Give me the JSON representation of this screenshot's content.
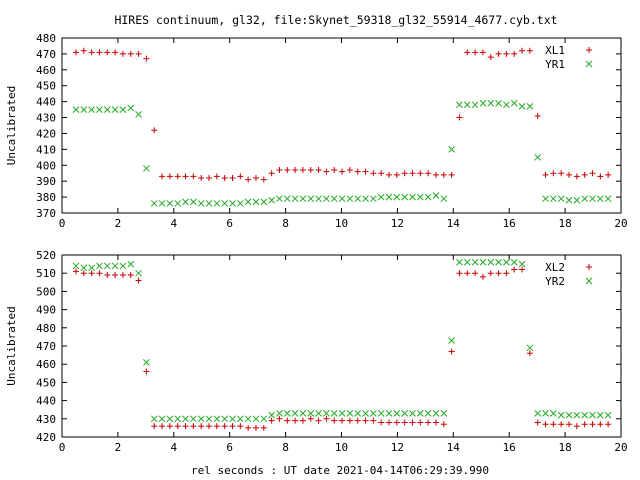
{
  "title": "HIRES continuum, gl32, file:Skynet_59318_gl32_55914_4677.cyb.txt",
  "xlabel": "rel seconds : UT date 2021-04-14T06:29:39.990",
  "colors": {
    "plus_series": "#cc0000",
    "cross_series": "#22aa22",
    "axis": "#000000"
  },
  "chart_data": [
    {
      "type": "scatter",
      "ylabel": "Uncalibrated",
      "xlim": [
        0,
        20
      ],
      "ylim": [
        370,
        480
      ],
      "xticks": [
        0,
        2,
        4,
        6,
        8,
        10,
        12,
        14,
        16,
        18,
        20
      ],
      "yticks": [
        370,
        380,
        390,
        400,
        410,
        420,
        430,
        440,
        450,
        460,
        470,
        480
      ],
      "legend_position": "top-right",
      "grid": false,
      "series": [
        {
          "name": "XL1",
          "marker": "plus",
          "x": [
            0.5,
            0.78,
            1.06,
            1.34,
            1.62,
            1.9,
            2.18,
            2.46,
            2.74,
            3.02,
            3.3,
            3.58,
            3.86,
            4.14,
            4.42,
            4.7,
            4.98,
            5.26,
            5.54,
            5.82,
            6.1,
            6.38,
            6.66,
            6.94,
            7.22,
            7.5,
            7.78,
            8.06,
            8.34,
            8.62,
            8.9,
            9.18,
            9.46,
            9.74,
            10.02,
            10.3,
            10.58,
            10.86,
            11.14,
            11.42,
            11.7,
            11.98,
            12.26,
            12.54,
            12.82,
            13.1,
            13.38,
            13.66,
            13.94,
            14.22,
            14.5,
            14.78,
            15.06,
            15.34,
            15.62,
            15.9,
            16.18,
            16.46,
            16.74,
            17.02,
            17.3,
            17.58,
            17.86,
            18.14,
            18.42,
            18.7,
            18.98,
            19.26,
            19.54
          ],
          "y": [
            471,
            472,
            471,
            471,
            471,
            471,
            470,
            470,
            470,
            467,
            422,
            393,
            393,
            393,
            393,
            393,
            392,
            392,
            393,
            392,
            392,
            393,
            391,
            392,
            391,
            395,
            397,
            397,
            397,
            397,
            397,
            397,
            396,
            397,
            396,
            397,
            396,
            396,
            395,
            395,
            394,
            394,
            395,
            395,
            395,
            395,
            394,
            394,
            394,
            430,
            471,
            471,
            471,
            468,
            470,
            470,
            470,
            472,
            472,
            431,
            394,
            395,
            395,
            394,
            393,
            394,
            395,
            393,
            394
          ]
        },
        {
          "name": "YR1",
          "marker": "cross",
          "x": [
            0.5,
            0.78,
            1.06,
            1.34,
            1.62,
            1.9,
            2.18,
            2.46,
            2.74,
            3.02,
            3.3,
            3.58,
            3.86,
            4.14,
            4.42,
            4.7,
            4.98,
            5.26,
            5.54,
            5.82,
            6.1,
            6.38,
            6.66,
            6.94,
            7.22,
            7.5,
            7.78,
            8.06,
            8.34,
            8.62,
            8.9,
            9.18,
            9.46,
            9.74,
            10.02,
            10.3,
            10.58,
            10.86,
            11.14,
            11.42,
            11.7,
            11.98,
            12.26,
            12.54,
            12.82,
            13.1,
            13.38,
            13.66,
            13.94,
            14.22,
            14.5,
            14.78,
            15.06,
            15.34,
            15.62,
            15.9,
            16.18,
            16.46,
            16.74,
            17.02,
            17.3,
            17.58,
            17.86,
            18.14,
            18.42,
            18.7,
            18.98,
            19.26,
            19.54
          ],
          "y": [
            435,
            435,
            435,
            435,
            435,
            435,
            435,
            436,
            432,
            398,
            376,
            376,
            376,
            376,
            377,
            377,
            376,
            376,
            376,
            376,
            376,
            376,
            377,
            377,
            377,
            378,
            379,
            379,
            379,
            379,
            379,
            379,
            379,
            379,
            379,
            379,
            379,
            379,
            379,
            380,
            380,
            380,
            380,
            380,
            380,
            380,
            381,
            379,
            410,
            438,
            438,
            438,
            439,
            439,
            439,
            438,
            439,
            437,
            437,
            405,
            379,
            379,
            379,
            378,
            378,
            379,
            379,
            379,
            379
          ]
        }
      ]
    },
    {
      "type": "scatter",
      "ylabel": "Uncalibrated",
      "xlim": [
        0,
        20
      ],
      "ylim": [
        420,
        520
      ],
      "xticks": [
        0,
        2,
        4,
        6,
        8,
        10,
        12,
        14,
        16,
        18,
        20
      ],
      "yticks": [
        420,
        430,
        440,
        450,
        460,
        470,
        480,
        490,
        500,
        510,
        520
      ],
      "legend_position": "top-right",
      "grid": false,
      "series": [
        {
          "name": "XL2",
          "marker": "plus",
          "x": [
            0.5,
            0.78,
            1.06,
            1.34,
            1.62,
            1.9,
            2.18,
            2.46,
            2.74,
            3.02,
            3.3,
            3.58,
            3.86,
            4.14,
            4.42,
            4.7,
            4.98,
            5.26,
            5.54,
            5.82,
            6.1,
            6.38,
            6.66,
            6.94,
            7.22,
            7.5,
            7.78,
            8.06,
            8.34,
            8.62,
            8.9,
            9.18,
            9.46,
            9.74,
            10.02,
            10.3,
            10.58,
            10.86,
            11.14,
            11.42,
            11.7,
            11.98,
            12.26,
            12.54,
            12.82,
            13.1,
            13.38,
            13.66,
            13.94,
            14.22,
            14.5,
            14.78,
            15.06,
            15.34,
            15.62,
            15.9,
            16.18,
            16.46,
            16.74,
            17.02,
            17.3,
            17.58,
            17.86,
            18.14,
            18.42,
            18.7,
            18.98,
            19.26,
            19.54
          ],
          "y": [
            511,
            510,
            510,
            510,
            509,
            509,
            509,
            509,
            506,
            456,
            426,
            426,
            426,
            426,
            426,
            426,
            426,
            426,
            426,
            426,
            426,
            426,
            425,
            425,
            425,
            429,
            430,
            429,
            429,
            429,
            430,
            429,
            430,
            429,
            429,
            429,
            429,
            429,
            429,
            428,
            428,
            428,
            428,
            428,
            428,
            428,
            428,
            427,
            467,
            510,
            510,
            510,
            508,
            510,
            510,
            510,
            512,
            512,
            466,
            428,
            427,
            427,
            427,
            427,
            426,
            427,
            427,
            427,
            427
          ]
        },
        {
          "name": "YR2",
          "marker": "cross",
          "x": [
            0.5,
            0.78,
            1.06,
            1.34,
            1.62,
            1.9,
            2.18,
            2.46,
            2.74,
            3.02,
            3.3,
            3.58,
            3.86,
            4.14,
            4.42,
            4.7,
            4.98,
            5.26,
            5.54,
            5.82,
            6.1,
            6.38,
            6.66,
            6.94,
            7.22,
            7.5,
            7.78,
            8.06,
            8.34,
            8.62,
            8.9,
            9.18,
            9.46,
            9.74,
            10.02,
            10.3,
            10.58,
            10.86,
            11.14,
            11.42,
            11.7,
            11.98,
            12.26,
            12.54,
            12.82,
            13.1,
            13.38,
            13.66,
            13.94,
            14.22,
            14.5,
            14.78,
            15.06,
            15.34,
            15.62,
            15.9,
            16.18,
            16.46,
            16.74,
            17.02,
            17.3,
            17.58,
            17.86,
            18.14,
            18.42,
            18.7,
            18.98,
            19.26,
            19.54
          ],
          "y": [
            514,
            513,
            513,
            514,
            514,
            514,
            514,
            515,
            510,
            461,
            430,
            430,
            430,
            430,
            430,
            430,
            430,
            430,
            430,
            430,
            430,
            430,
            430,
            430,
            430,
            432,
            433,
            433,
            433,
            433,
            433,
            433,
            433,
            433,
            433,
            433,
            433,
            433,
            433,
            433,
            433,
            433,
            433,
            433,
            433,
            433,
            433,
            433,
            473,
            516,
            516,
            516,
            516,
            516,
            516,
            516,
            516,
            515,
            469,
            433,
            433,
            433,
            432,
            432,
            432,
            432,
            432,
            432,
            432
          ]
        }
      ]
    }
  ]
}
